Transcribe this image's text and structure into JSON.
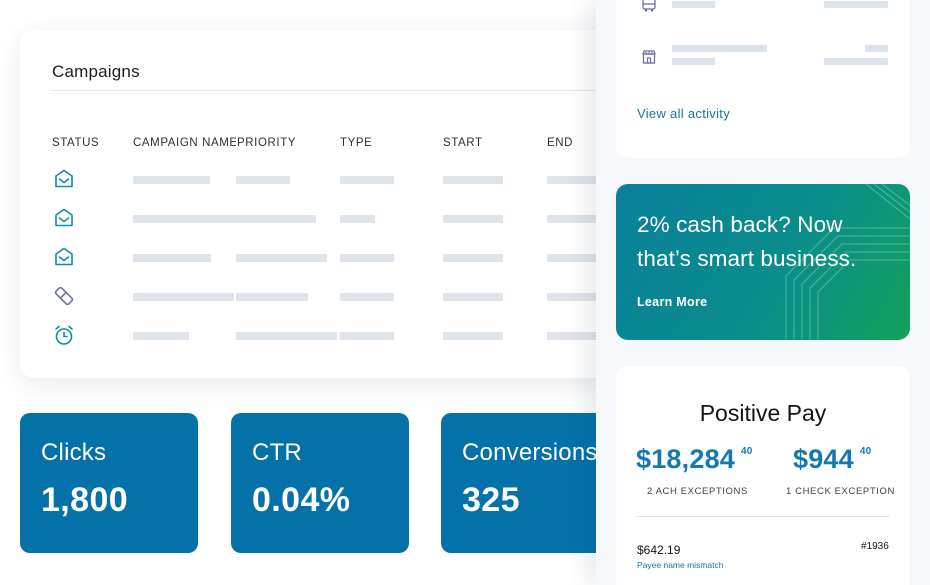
{
  "campaigns": {
    "title": "Campaigns",
    "columns": [
      "STATUS",
      "CAMPAIGN NAME",
      "PRIORITY",
      "TYPE",
      "START",
      "END"
    ],
    "rows": [
      {
        "status_icon": "envelope-icon"
      },
      {
        "status_icon": "envelope-icon"
      },
      {
        "status_icon": "envelope-icon"
      },
      {
        "status_icon": "pencil-eraser-icon"
      },
      {
        "status_icon": "alarm-clock-icon"
      }
    ]
  },
  "metrics": [
    {
      "label": "Clicks",
      "value": "1,800"
    },
    {
      "label": "CTR",
      "value": "0.04%"
    },
    {
      "label": "Conversions",
      "value": "325"
    }
  ],
  "activity": {
    "icons": [
      "bus-icon",
      "storefront-icon"
    ],
    "view_all": "View all activity"
  },
  "promo": {
    "headline": "2% cash back? Now that’s smart business.",
    "cta": "Learn More"
  },
  "positive_pay": {
    "title": "Positive Pay",
    "ach": {
      "amount": "$18,284",
      "cents": "40",
      "label": "2 ACH EXCEPTIONS"
    },
    "check": {
      "amount": "$944",
      "cents": "40",
      "label": "1 CHECK EXCEPTION"
    },
    "item": {
      "amount": "$642.19",
      "number": "#1936",
      "note": "Payee name mismatch"
    }
  },
  "colors": {
    "metric_bg": "#0472a8",
    "accent_teal": "#0b8ea6",
    "amount_blue": "#1479b3",
    "promo_gradient_start": "#0a7f9b",
    "promo_gradient_end": "#14a05a",
    "placeholder_bar": "#dfe4ea"
  }
}
